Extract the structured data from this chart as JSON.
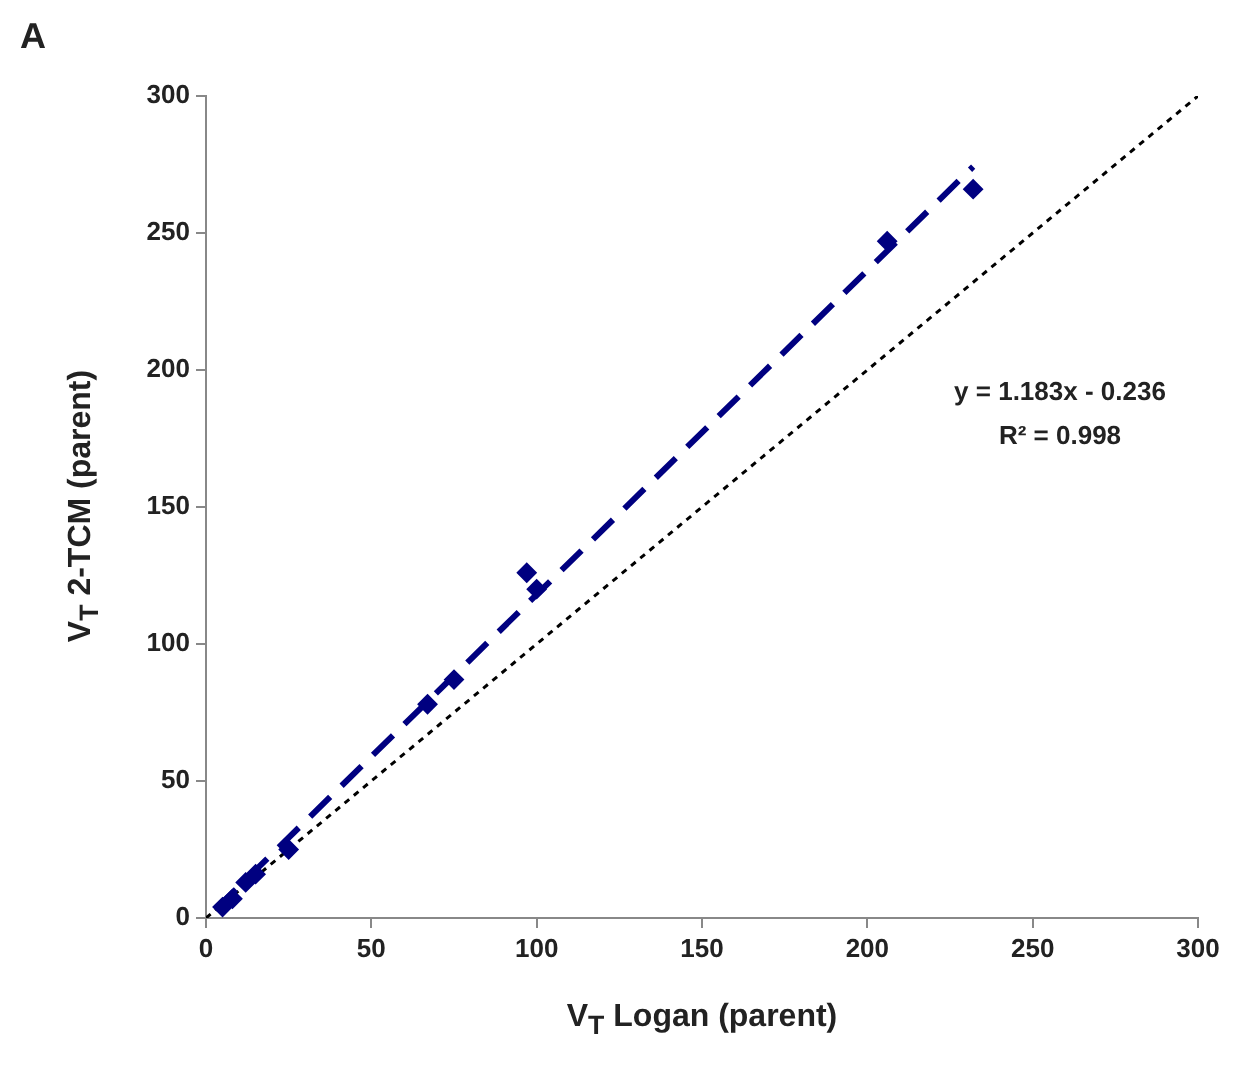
{
  "chart_data": {
    "type": "scatter",
    "title": "A",
    "xlabel": "V$_{T}$ Logan (parent)",
    "ylabel": "V$_{T}$ 2-TCM (parent)",
    "xlim": [
      0,
      300
    ],
    "ylim": [
      0,
      300
    ],
    "xticks": [
      0,
      50,
      100,
      150,
      200,
      250,
      300
    ],
    "yticks": [
      0,
      50,
      100,
      150,
      200,
      250,
      300
    ],
    "grid": false,
    "legend": false,
    "annotations": [
      "y = 1.183x - 0.236",
      "R² = 0.998"
    ],
    "series": [
      {
        "type": "scatter",
        "marker": "diamond",
        "color": "#000080",
        "x": [
          5,
          8,
          12,
          15,
          25,
          67,
          75,
          97,
          100,
          206,
          232
        ],
        "values": [
          4,
          7,
          13,
          16,
          25,
          78,
          87,
          126,
          120,
          247,
          266
        ]
      },
      {
        "type": "line",
        "color": "#000080",
        "line_style": "dashed",
        "marker": "none",
        "x": [
          3,
          232
        ],
        "values": [
          3.3,
          274.2
        ]
      },
      {
        "type": "line",
        "color": "#000000",
        "line_style": "dotted",
        "marker": "none",
        "x": [
          0,
          300
        ],
        "values": [
          0,
          300
        ]
      }
    ]
  }
}
